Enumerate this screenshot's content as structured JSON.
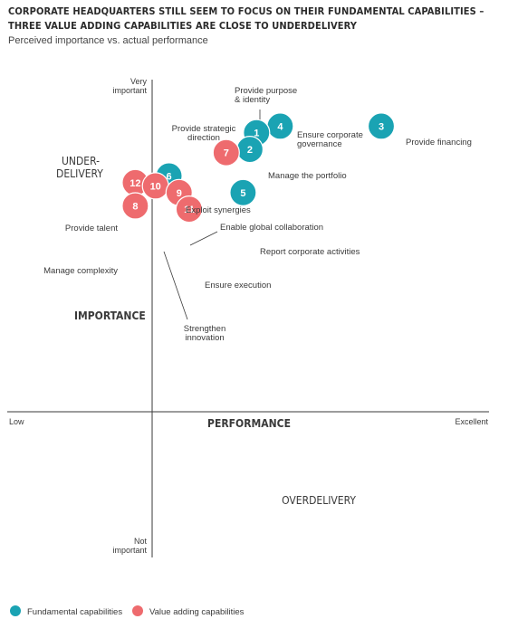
{
  "header": {
    "title_line1": "CORPORATE HEADQUARTERS STILL SEEM TO FOCUS ON THEIR FUNDAMENTAL CAPABILITIES –",
    "title_line2": "THREE VALUE ADDING CAPABILITIES ARE CLOSE TO UNDERDELIVERY",
    "subtitle": "Perceived importance vs. actual performance"
  },
  "chart_data": {
    "type": "scatter",
    "x_axis": {
      "label": "PERFORMANCE",
      "low": "Low",
      "high": "Excellent",
      "range": [
        0,
        10
      ]
    },
    "y_axis": {
      "label": "IMPORTANCE",
      "high_line1": "Very",
      "high_line2": "important",
      "low_line1": "Not",
      "low_line2": "important",
      "range": [
        0,
        10
      ]
    },
    "regions": {
      "under_line1": "UNDER-",
      "under_line2": "DELIVERY",
      "over": "OVERDELIVERY"
    },
    "colors": {
      "fundamental": "#1aa3b3",
      "value_adding": "#ee6b6e"
    },
    "legend": [
      {
        "name": "Fundamental capabilities",
        "group": "fundamental"
      },
      {
        "name": "Value adding capabilities",
        "group": "value_adding"
      }
    ],
    "points": [
      {
        "id": "1",
        "group": "fundamental",
        "x": 3.1,
        "y": 8.4,
        "line1": "Provide purpose",
        "line2": "& identity"
      },
      {
        "id": "2",
        "group": "fundamental",
        "x": 2.9,
        "y": 7.9,
        "line1": "Manage the portfolio",
        "line2": ""
      },
      {
        "id": "3",
        "group": "fundamental",
        "x": 6.8,
        "y": 8.6,
        "line1": "Provide financing",
        "line2": ""
      },
      {
        "id": "4",
        "group": "fundamental",
        "x": 3.8,
        "y": 8.6,
        "line1": "Ensure corporate",
        "line2": "governance"
      },
      {
        "id": "5",
        "group": "fundamental",
        "x": 2.7,
        "y": 6.6,
        "line1": "Report corporate activities",
        "line2": ""
      },
      {
        "id": "6",
        "group": "fundamental",
        "x": 0.5,
        "y": 7.1,
        "line1": "Exploit synergies",
        "line2": ""
      },
      {
        "id": "7",
        "group": "value_adding",
        "x": 2.2,
        "y": 7.8,
        "line1": "Provide strategic",
        "line2": "direction"
      },
      {
        "id": "8",
        "group": "value_adding",
        "x": -0.5,
        "y": 6.2,
        "line1": "Manage complexity",
        "line2": ""
      },
      {
        "id": "9",
        "group": "value_adding",
        "x": 0.8,
        "y": 6.6,
        "line1": "Enable global collaboration",
        "line2": ""
      },
      {
        "id": "10",
        "group": "value_adding",
        "x": 0.1,
        "y": 6.8,
        "line1": "Strengthen",
        "line2": "innovation"
      },
      {
        "id": "11",
        "group": "value_adding",
        "x": 1.1,
        "y": 6.1,
        "line1": "Ensure execution",
        "line2": ""
      },
      {
        "id": "12",
        "group": "value_adding",
        "x": -0.5,
        "y": 6.9,
        "line1": "Provide talent",
        "line2": ""
      }
    ]
  }
}
